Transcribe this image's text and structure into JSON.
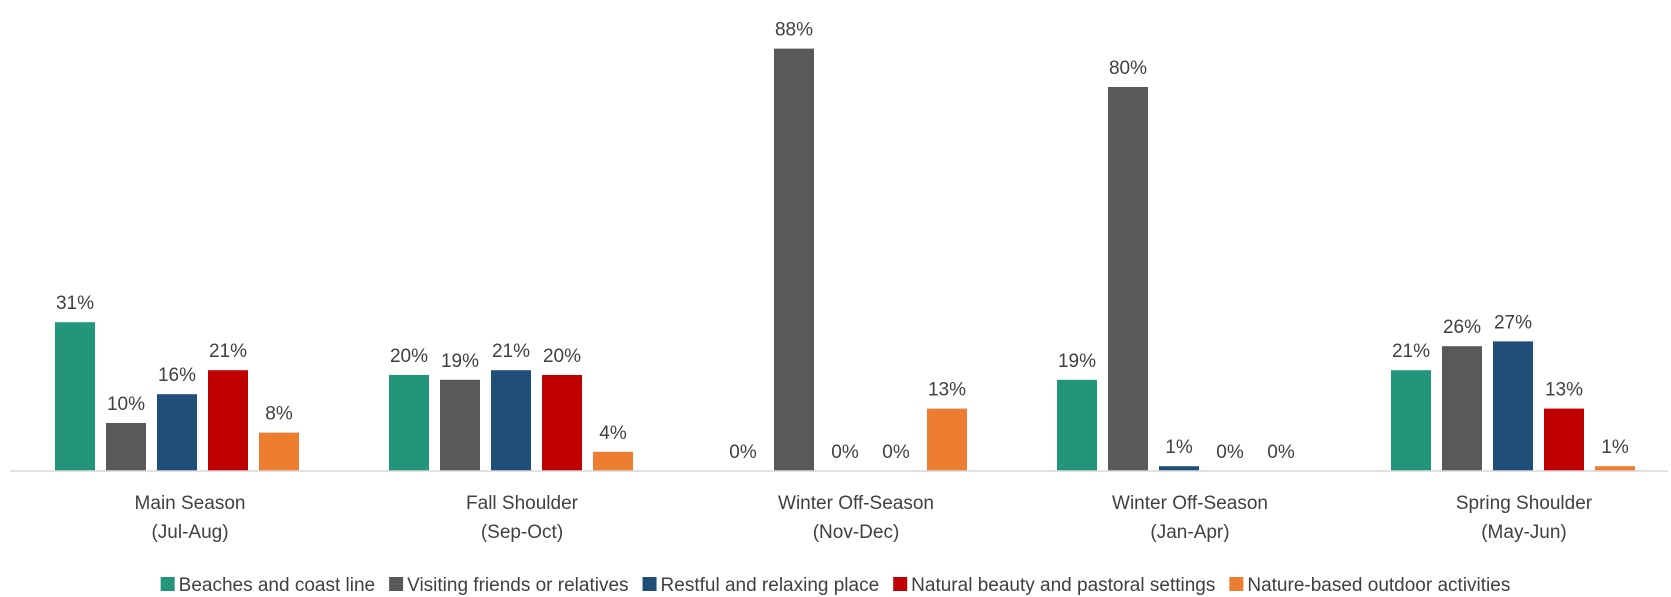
{
  "chart_data": {
    "type": "bar",
    "categories": [
      [
        "Main Season",
        "(Jul-Aug)"
      ],
      [
        "Fall Shoulder",
        "(Sep-Oct)"
      ],
      [
        "Winter Off-Season",
        "(Nov-Dec)"
      ],
      [
        "Winter Off-Season",
        "(Jan-Apr)"
      ],
      [
        "Spring Shoulder",
        "(May-Jun)"
      ]
    ],
    "series": [
      {
        "name": "Beaches and coast line",
        "color": "#22957a",
        "values": [
          31,
          20,
          0,
          19,
          21
        ],
        "labels": [
          "31%",
          "20%",
          "0%",
          "19%",
          "21%"
        ]
      },
      {
        "name": "Visiting friends or relatives",
        "color": "#595959",
        "values": [
          10,
          19,
          88,
          80,
          26
        ],
        "labels": [
          "10%",
          "19%",
          "88%",
          "80%",
          "26%"
        ]
      },
      {
        "name": "Restful and relaxing place",
        "color": "#1f4e79",
        "values": [
          16,
          21,
          0,
          1,
          27
        ],
        "labels": [
          "16%",
          "21%",
          "0%",
          "1%",
          "27%"
        ]
      },
      {
        "name": "Natural beauty and pastoral settings",
        "color": "#c00000",
        "values": [
          21,
          20,
          0,
          0,
          13
        ],
        "labels": [
          "21%",
          "20%",
          "0%",
          "0%",
          "13%"
        ]
      },
      {
        "name": "Nature-based outdoor activities",
        "color": "#ed7d31",
        "values": [
          8,
          4,
          13,
          0,
          1
        ],
        "labels": [
          "8%",
          "4%",
          "13%",
          "0%",
          "1%"
        ]
      }
    ],
    "ylim": [
      0,
      100
    ],
    "grid": false,
    "legend_position": "bottom"
  }
}
